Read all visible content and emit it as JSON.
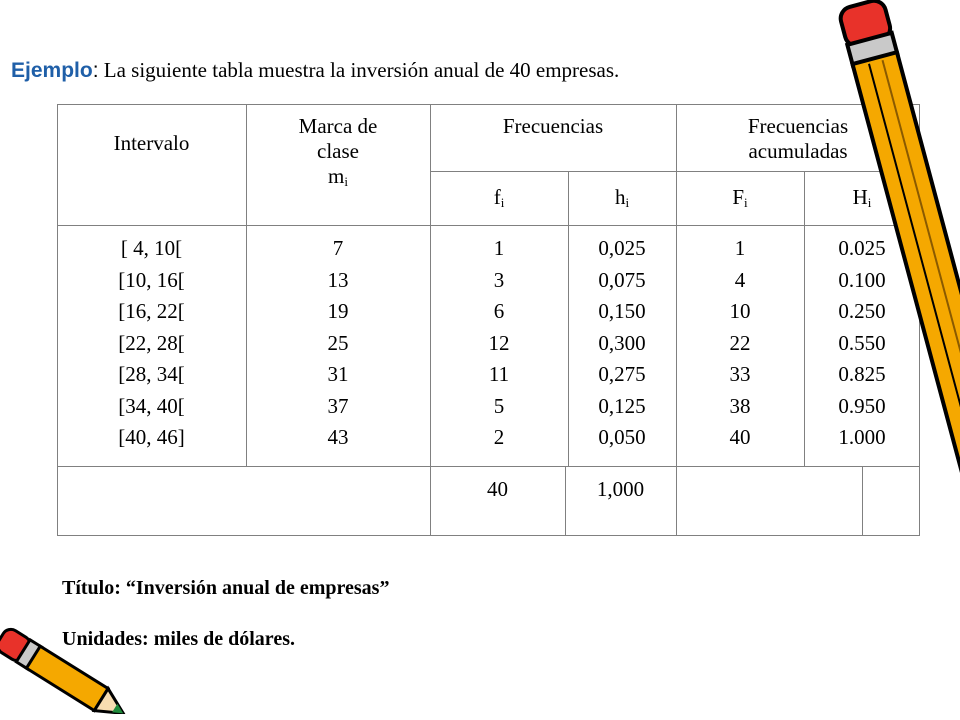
{
  "heading": {
    "lead": "Ejemplo",
    "colon": ":",
    "text": " La siguiente tabla muestra la inversión anual de 40 empresas."
  },
  "table": {
    "headers": {
      "intervalo": "Intervalo",
      "marca": [
        "Marca de",
        "clase"
      ],
      "marca_symbol": "m",
      "marca_sub": "i",
      "frecuencias": "Frecuencias",
      "acumuladas": [
        "Frecuencias",
        "acumuladas"
      ],
      "f": "f",
      "f_sub": "i",
      "h": "h",
      "h_sub": "i",
      "F": "F",
      "F_sub": "i",
      "H": "H",
      "H_sub": "i"
    },
    "columns": {
      "intervalo": [
        "[ 4, 10[",
        "[10, 16[",
        "[16, 22[",
        "[22, 28[",
        "[28, 34[",
        "[34, 40[",
        "[40, 46]"
      ],
      "marca": [
        "7",
        "13",
        "19",
        "25",
        "31",
        "37",
        "43"
      ],
      "fi": [
        "1",
        "3",
        "6",
        "12",
        "11",
        "5",
        "2"
      ],
      "hi": [
        "0,025",
        "0,075",
        "0,150",
        "0,300",
        "0,275",
        "0,125",
        "0,050"
      ],
      "Fi": [
        "1",
        "4",
        "10",
        "22",
        "33",
        "38",
        "40"
      ],
      "Hi": [
        "0.025",
        "0.100",
        "0.250",
        "0.550",
        "0.825",
        "0.950",
        "1.000"
      ]
    },
    "totals": {
      "fi": "40",
      "hi": "1,000"
    }
  },
  "footer": {
    "titulo": "Título: “Inversión anual de empresas”",
    "unidades": "Unidades: miles de dólares."
  },
  "decorations": {
    "pencil_icon": "pencil-icon",
    "pencil_color": "#f5a800"
  }
}
